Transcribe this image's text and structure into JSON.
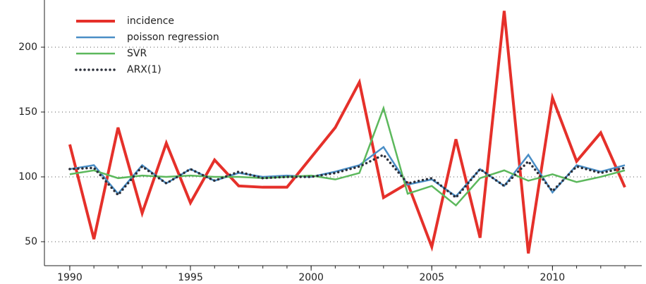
{
  "chart_data": {
    "type": "line",
    "x": [
      1990,
      1991,
      1992,
      1993,
      1994,
      1995,
      1996,
      1997,
      1998,
      1999,
      2000,
      2001,
      2002,
      2003,
      2004,
      2005,
      2006,
      2007,
      2008,
      2009,
      2010,
      2011,
      2012,
      2013
    ],
    "series": [
      {
        "name": "incidence",
        "color": "#e5302a",
        "width": 4,
        "dash": "solid",
        "values": [
          125,
          52,
          138,
          72,
          126,
          80,
          113,
          93,
          92,
          92,
          115,
          138,
          173,
          84,
          95,
          46,
          129,
          53,
          228,
          41,
          161,
          112,
          134,
          92
        ]
      },
      {
        "name": "poisson regression",
        "color": "#4a8ec6",
        "width": 2.5,
        "dash": "solid",
        "values": [
          106,
          109,
          87,
          109,
          95,
          106,
          97,
          103,
          100,
          101,
          100,
          104,
          109,
          123,
          94,
          98,
          85,
          106,
          93,
          117,
          88,
          109,
          104,
          109
        ]
      },
      {
        "name": "SVR",
        "color": "#5cb85c",
        "width": 2.5,
        "dash": "solid",
        "values": [
          102,
          105,
          99,
          101,
          100,
          101,
          100,
          100,
          99,
          100,
          101,
          98,
          103,
          153,
          87,
          93,
          78,
          99,
          105,
          97,
          102,
          96,
          100,
          105
        ]
      },
      {
        "name": "ARX(1)",
        "color": "#2b2f3a",
        "width": 3.5,
        "dash": "dot",
        "values": [
          106,
          107,
          86,
          108,
          95,
          106,
          97,
          104,
          99,
          100,
          100,
          103,
          108,
          117,
          95,
          99,
          84,
          106,
          93,
          112,
          89,
          108,
          103,
          107
        ]
      }
    ],
    "xlim": [
      1988.95,
      2013.7
    ],
    "ylim": [
      31.5,
      236.4
    ],
    "xticks": [
      1990,
      1995,
      2000,
      2005,
      2010
    ],
    "yticks": [
      50,
      100,
      150,
      200
    ],
    "grid": true,
    "legend": "upper left"
  }
}
